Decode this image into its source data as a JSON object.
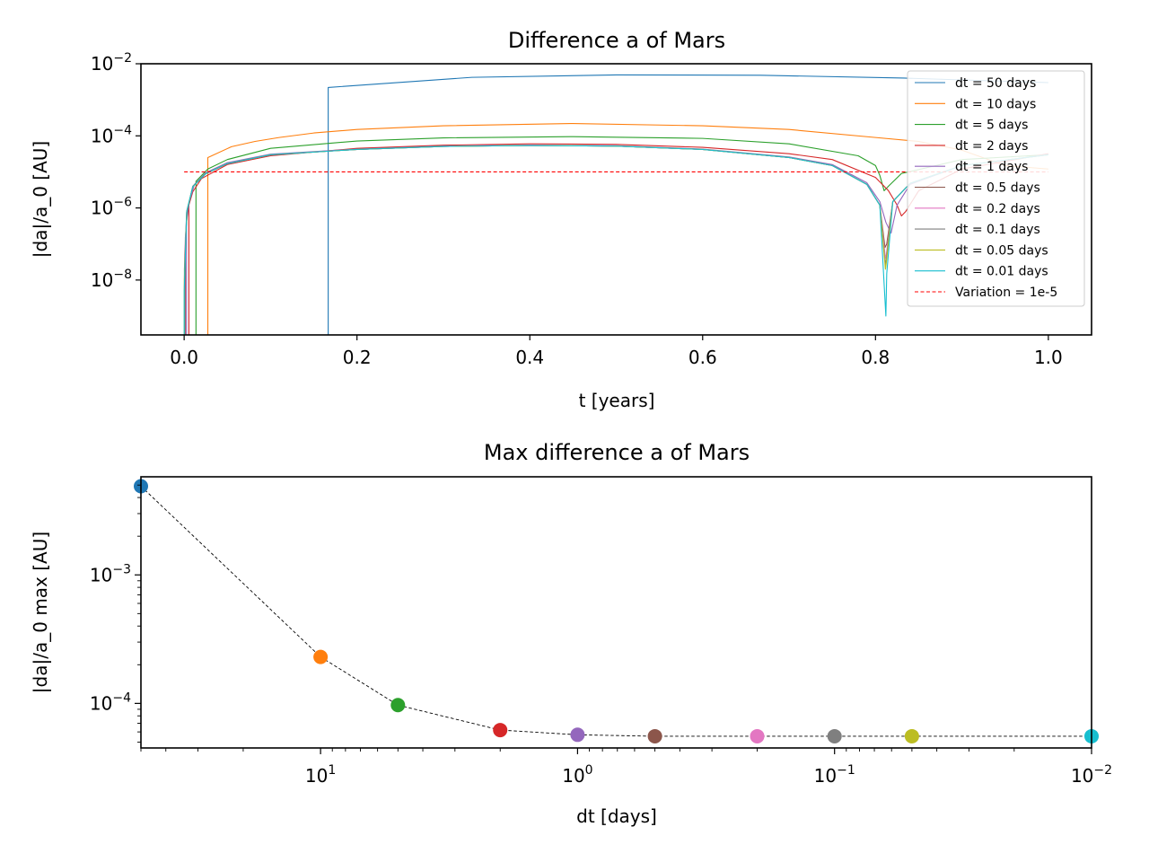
{
  "chart_data": [
    {
      "type": "line",
      "title": "Difference a of Mars",
      "xlabel": "t [years]",
      "ylabel": "|da|/a_0 [AU]",
      "xscale": "linear",
      "yscale": "log",
      "xlim": [
        -0.05,
        1.05
      ],
      "ylim": [
        3e-10,
        0.01
      ],
      "xticks": [
        0.0,
        0.2,
        0.4,
        0.6,
        0.8,
        1.0
      ],
      "xtick_labels": [
        "0.0",
        "0.2",
        "0.4",
        "0.6",
        "0.8",
        "1.0"
      ],
      "yticks": [
        {
          "value": 0.01,
          "base": "10",
          "exp": "−2"
        },
        {
          "value": 0.0001,
          "base": "10",
          "exp": "−4"
        },
        {
          "value": 1e-06,
          "base": "10",
          "exp": "−6"
        },
        {
          "value": 1e-08,
          "base": "10",
          "exp": "−8"
        }
      ],
      "grid": false,
      "legend_position": "top-right",
      "series": [
        {
          "name": "dt = 50 days",
          "color": "#1f77b4",
          "dash": "solid",
          "x": [
            0.1667,
            0.1667,
            0.333,
            0.5,
            0.667,
            0.833,
            1.0
          ],
          "y": [
            3e-10,
            0.0022,
            0.0042,
            0.0049,
            0.0048,
            0.004,
            0.003
          ]
        },
        {
          "name": "dt = 10 days",
          "color": "#ff7f0e",
          "dash": "solid",
          "x": [
            0.0274,
            0.0274,
            0.0548,
            0.082,
            0.11,
            0.15,
            0.2,
            0.3,
            0.45,
            0.6,
            0.7,
            0.8,
            0.85,
            0.9,
            0.95,
            1.0
          ],
          "y": [
            3e-10,
            2.5e-05,
            5e-05,
            7e-05,
            9e-05,
            0.00012,
            0.00015,
            0.00019,
            0.00022,
            0.00019,
            0.00015,
            9e-05,
            7e-05,
            4e-05,
            1.5e-05,
            1.2e-05
          ]
        },
        {
          "name": "dt = 5 days",
          "color": "#2ca02c",
          "dash": "solid",
          "x": [
            0.0137,
            0.0137,
            0.0274,
            0.05,
            0.1,
            0.2,
            0.3,
            0.45,
            0.6,
            0.7,
            0.78,
            0.8,
            0.805,
            0.81,
            0.815,
            0.83,
            0.9,
            1.0
          ],
          "y": [
            3e-10,
            5.5e-06,
            1.2e-05,
            2.2e-05,
            4.5e-05,
            7.2e-05,
            8.8e-05,
            9.5e-05,
            8.5e-05,
            6e-05,
            2.8e-05,
            1.5e-05,
            8e-06,
            3e-06,
            4e-06,
            9e-06,
            2.2e-05,
            3e-05
          ]
        },
        {
          "name": "dt = 2 days",
          "color": "#d62728",
          "dash": "solid",
          "x": [
            0.0055,
            0.0055,
            0.01,
            0.02,
            0.05,
            0.1,
            0.2,
            0.3,
            0.4,
            0.5,
            0.6,
            0.7,
            0.75,
            0.8,
            0.815,
            0.825,
            0.83,
            0.835,
            0.85,
            0.9,
            1.0
          ],
          "y": [
            3e-10,
            1.2e-06,
            2.8e-06,
            6.5e-06,
            1.6e-05,
            2.8e-05,
            4.5e-05,
            5.5e-05,
            6e-05,
            5.8e-05,
            4.8e-05,
            3.2e-05,
            2.2e-05,
            7e-06,
            3e-06,
            1.2e-06,
            6e-07,
            8e-07,
            3e-06,
            1.2e-05,
            3.2e-05
          ]
        },
        {
          "name": "dt = 1 days",
          "color": "#9467bd",
          "dash": "solid",
          "x": [
            0.0027,
            0.0027,
            0.006,
            0.012,
            0.025,
            0.05,
            0.1,
            0.2,
            0.3,
            0.4,
            0.5,
            0.6,
            0.7,
            0.75,
            0.79,
            0.805,
            0.812,
            0.818,
            0.825,
            0.84,
            0.9,
            1.0
          ],
          "y": [
            3e-10,
            4e-07,
            1.5e-06,
            4.5e-06,
            9.5e-06,
            1.8e-05,
            3.1e-05,
            4.3e-05,
            5.2e-05,
            5.5e-05,
            5.3e-05,
            4.3e-05,
            2.6e-05,
            1.6e-05,
            5e-06,
            1.5e-06,
            4e-07,
            2e-07,
            1.2e-06,
            4.5e-06,
            1.5e-05,
            3e-05
          ]
        },
        {
          "name": "dt = 0.5 days",
          "color": "#8c564b",
          "dash": "solid",
          "x": [
            0.0014,
            0.0014,
            0.004,
            0.01,
            0.025,
            0.05,
            0.1,
            0.2,
            0.3,
            0.4,
            0.5,
            0.6,
            0.7,
            0.75,
            0.79,
            0.805,
            0.811,
            0.813,
            0.82,
            0.84,
            0.9,
            1.0
          ],
          "y": [
            3e-10,
            1.5e-07,
            9e-07,
            4e-06,
            9e-06,
            1.7e-05,
            3e-05,
            4.2e-05,
            5.1e-05,
            5.4e-05,
            5.2e-05,
            4.2e-05,
            2.5e-05,
            1.5e-05,
            4.5e-06,
            1.2e-06,
            8e-08,
            1e-07,
            1.5e-06,
            4.8e-06,
            1.5e-05,
            3e-05
          ]
        },
        {
          "name": "dt = 0.2 days",
          "color": "#e377c2",
          "dash": "solid",
          "x": [
            0.0006,
            0.0006,
            0.003,
            0.01,
            0.025,
            0.05,
            0.1,
            0.2,
            0.3,
            0.4,
            0.5,
            0.6,
            0.7,
            0.75,
            0.79,
            0.805,
            0.8115,
            0.8125,
            0.82,
            0.84,
            0.9,
            1.0
          ],
          "y": [
            3e-10,
            5e-08,
            8e-07,
            3.9e-06,
            8.9e-06,
            1.7e-05,
            3e-05,
            4.2e-05,
            5.1e-05,
            5.4e-05,
            5.2e-05,
            4.2e-05,
            2.5e-05,
            1.5e-05,
            4.5e-06,
            1.2e-06,
            4e-08,
            5e-08,
            1.5e-06,
            4.8e-06,
            1.5e-05,
            3e-05
          ]
        },
        {
          "name": "dt = 0.1 days",
          "color": "#7f7f7f",
          "dash": "solid",
          "x": [
            0.0003,
            0.0003,
            0.003,
            0.01,
            0.025,
            0.05,
            0.1,
            0.2,
            0.3,
            0.4,
            0.5,
            0.6,
            0.7,
            0.75,
            0.79,
            0.805,
            0.8115,
            0.8125,
            0.82,
            0.84,
            0.9,
            1.0
          ],
          "y": [
            3e-10,
            2e-08,
            8e-07,
            3.9e-06,
            8.9e-06,
            1.7e-05,
            3e-05,
            4.2e-05,
            5.1e-05,
            5.4e-05,
            5.2e-05,
            4.2e-05,
            2.5e-05,
            1.5e-05,
            4.5e-06,
            1.2e-06,
            2.5e-08,
            4e-08,
            1.5e-06,
            4.8e-06,
            1.5e-05,
            3e-05
          ]
        },
        {
          "name": "dt = 0.05 days",
          "color": "#bcbd22",
          "dash": "solid",
          "x": [
            0.0002,
            0.0002,
            0.003,
            0.01,
            0.025,
            0.05,
            0.1,
            0.2,
            0.3,
            0.4,
            0.5,
            0.6,
            0.7,
            0.75,
            0.79,
            0.805,
            0.8115,
            0.8125,
            0.82,
            0.84,
            0.9,
            1.0
          ],
          "y": [
            3e-10,
            1e-08,
            8e-07,
            3.9e-06,
            8.9e-06,
            1.7e-05,
            3e-05,
            4.2e-05,
            5.1e-05,
            5.4e-05,
            5.2e-05,
            4.2e-05,
            2.5e-05,
            1.5e-05,
            4.5e-06,
            1.2e-06,
            2e-08,
            3e-08,
            1.5e-06,
            4.8e-06,
            1.5e-05,
            3e-05
          ]
        },
        {
          "name": "dt = 0.01 days",
          "color": "#17becf",
          "dash": "solid",
          "x": [
            0.0001,
            0.0001,
            0.003,
            0.01,
            0.025,
            0.05,
            0.1,
            0.2,
            0.3,
            0.4,
            0.5,
            0.6,
            0.7,
            0.75,
            0.79,
            0.805,
            0.812,
            0.813,
            0.82,
            0.84,
            0.9,
            1.0
          ],
          "y": [
            3e-10,
            5e-09,
            8e-07,
            3.9e-06,
            8.9e-06,
            1.7e-05,
            3e-05,
            4.2e-05,
            5.1e-05,
            5.4e-05,
            5.2e-05,
            4.2e-05,
            2.5e-05,
            1.5e-05,
            4.5e-06,
            1.2e-06,
            1e-09,
            1.5e-08,
            1.5e-06,
            4.8e-06,
            1.5e-05,
            3e-05
          ]
        },
        {
          "name": "Variation = 1e-5",
          "color": "#ff0000",
          "dash": "dashed",
          "x": [
            0.0,
            1.0
          ],
          "y": [
            1e-05,
            1e-05
          ]
        }
      ]
    },
    {
      "type": "scatter",
      "title": "Max difference a of Mars",
      "xlabel": "dt [days]",
      "ylabel": "|da|/a_0 max [AU]",
      "xscale": "log",
      "yscale": "log",
      "x_inverted": true,
      "xlim": [
        50,
        0.01
      ],
      "ylim": [
        4.5e-05,
        0.0058
      ],
      "xticks": [
        {
          "value": 10,
          "base": "10",
          "exp": "1"
        },
        {
          "value": 1,
          "base": "10",
          "exp": "0"
        },
        {
          "value": 0.1,
          "base": "10",
          "exp": "−1"
        },
        {
          "value": 0.01,
          "base": "10",
          "exp": "−2"
        }
      ],
      "yticks": [
        {
          "value": 0.001,
          "base": "10",
          "exp": "−3"
        },
        {
          "value": 0.0001,
          "base": "10",
          "exp": "−4"
        }
      ],
      "grid": false,
      "connector": {
        "color": "#000000",
        "dash": "dashed"
      },
      "points": [
        {
          "x": 50,
          "y": 0.0049,
          "color": "#1f77b4"
        },
        {
          "x": 10,
          "y": 0.00023,
          "color": "#ff7f0e"
        },
        {
          "x": 5,
          "y": 9.7e-05,
          "color": "#2ca02c"
        },
        {
          "x": 2,
          "y": 6.2e-05,
          "color": "#d62728"
        },
        {
          "x": 1,
          "y": 5.7e-05,
          "color": "#9467bd"
        },
        {
          "x": 0.5,
          "y": 5.55e-05,
          "color": "#8c564b"
        },
        {
          "x": 0.2,
          "y": 5.55e-05,
          "color": "#e377c2"
        },
        {
          "x": 0.1,
          "y": 5.55e-05,
          "color": "#7f7f7f"
        },
        {
          "x": 0.05,
          "y": 5.55e-05,
          "color": "#bcbd22"
        },
        {
          "x": 0.01,
          "y": 5.55e-05,
          "color": "#17becf"
        }
      ]
    }
  ]
}
